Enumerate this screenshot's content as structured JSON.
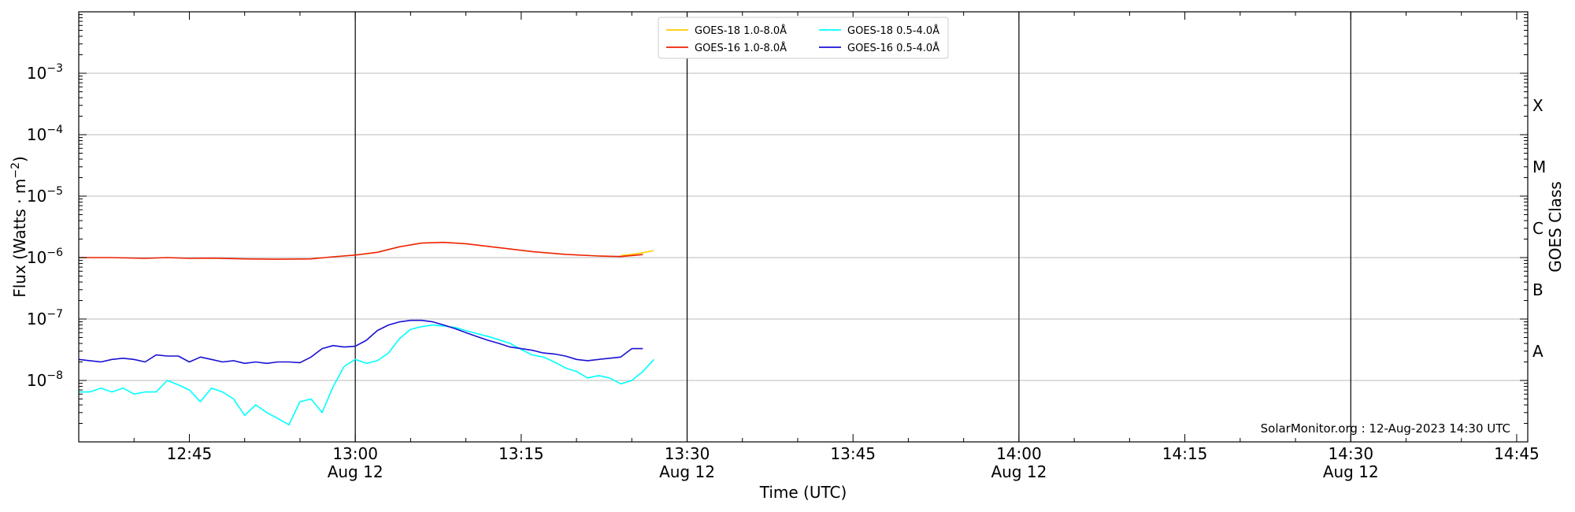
{
  "chart_data": {
    "type": "line",
    "xlabel": "Time (UTC)",
    "ylabel": "Flux (Watts · m",
    "ylabel_superscript": "−2",
    "ylabel_close": ")",
    "y_scale": "log",
    "ylim": [
      1e-09,
      0.01
    ],
    "xlim": [
      "12:35",
      "14:46"
    ],
    "x_ticks": [
      "12:45",
      "13:00",
      "13:15",
      "13:30",
      "13:45",
      "14:00",
      "14:15",
      "14:30",
      "14:45"
    ],
    "x_date_ticks": [
      "13:00",
      "13:30",
      "14:00",
      "14:30"
    ],
    "date_label": "Aug 12",
    "vertical_lines": [
      "13:00",
      "13:30",
      "14:00",
      "14:30"
    ],
    "y_ticks": [
      {
        "exp": -8,
        "value": 1e-08
      },
      {
        "exp": -7,
        "value": 1e-07
      },
      {
        "exp": -6,
        "value": 1e-06
      },
      {
        "exp": -5,
        "value": 1e-05
      },
      {
        "exp": -4,
        "value": 0.0001
      },
      {
        "exp": -3,
        "value": 0.001
      }
    ],
    "grid": "horizontal",
    "right_axis": {
      "label": "GOES Class",
      "classes": [
        {
          "name": "A",
          "value": 3e-08
        },
        {
          "name": "B",
          "value": 3e-07
        },
        {
          "name": "C",
          "value": 3e-06
        },
        {
          "name": "M",
          "value": 3e-05
        },
        {
          "name": "X",
          "value": 0.0003
        }
      ]
    },
    "legend_position": "top-center",
    "footer": "SolarMonitor.org : 12-Aug-2023 14:30 UTC",
    "series": [
      {
        "name": "GOES-18 1.0-8.0Å",
        "color": "#ffcc00",
        "x": [
          "13:24",
          "13:25",
          "13:26",
          "13:27"
        ],
        "y": [
          1.08e-06,
          1.13e-06,
          1.2e-06,
          1.3e-06
        ]
      },
      {
        "name": "GOES-16 1.0-8.0Å",
        "color": "#ee2200",
        "x": [
          "12:35",
          "12:38",
          "12:41",
          "12:43",
          "12:45",
          "12:47",
          "12:50",
          "12:53",
          "12:56",
          "12:58",
          "13:00",
          "13:02",
          "13:04",
          "13:06",
          "13:08",
          "13:10",
          "13:13",
          "13:16",
          "13:19",
          "13:22",
          "13:24",
          "13:26"
        ],
        "y": [
          1e-06,
          1e-06,
          9.7e-07,
          1e-06,
          9.7e-07,
          9.8e-07,
          9.5e-07,
          9.4e-07,
          9.5e-07,
          1.03e-06,
          1.1e-06,
          1.22e-06,
          1.5e-06,
          1.72e-06,
          1.77e-06,
          1.68e-06,
          1.45e-06,
          1.25e-06,
          1.13e-06,
          1.06e-06,
          1.04e-06,
          1.12e-06
        ]
      },
      {
        "name": "GOES-18 0.5-4.0Å",
        "color": "#00ffff",
        "x": [
          "12:35",
          "12:36",
          "12:37",
          "12:38",
          "12:39",
          "12:40",
          "12:41",
          "12:42",
          "12:43",
          "12:44",
          "12:45",
          "12:46",
          "12:47",
          "12:48",
          "12:49",
          "12:50",
          "12:51",
          "12:52",
          "12:53",
          "12:54",
          "12:55",
          "12:56",
          "12:57",
          "12:58",
          "12:59",
          "13:00",
          "13:01",
          "13:02",
          "13:03",
          "13:04",
          "13:05",
          "13:06",
          "13:07",
          "13:08",
          "13:09",
          "13:10",
          "13:11",
          "13:12",
          "13:13",
          "13:14",
          "13:15",
          "13:16",
          "13:17",
          "13:18",
          "13:19",
          "13:20",
          "13:21",
          "13:22",
          "13:23",
          "13:24",
          "13:25",
          "13:26",
          "13:27"
        ],
        "y": [
          6.5e-09,
          6.5e-09,
          7.5e-09,
          6.5e-09,
          7.5e-09,
          6e-09,
          6.5e-09,
          6.5e-09,
          1e-08,
          8.5e-09,
          7e-09,
          4.5e-09,
          7.5e-09,
          6.5e-09,
          5e-09,
          2.7e-09,
          4e-09,
          3e-09,
          2.4e-09,
          1.9e-09,
          4.5e-09,
          5e-09,
          3e-09,
          8e-09,
          1.7e-08,
          2.2e-08,
          1.9e-08,
          2.1e-08,
          2.8e-08,
          4.8e-08,
          6.8e-08,
          7.5e-08,
          8e-08,
          7.7e-08,
          7.3e-08,
          6.5e-08,
          5.8e-08,
          5.2e-08,
          4.6e-08,
          4e-08,
          3.2e-08,
          2.6e-08,
          2.4e-08,
          2e-08,
          1.6e-08,
          1.4e-08,
          1.1e-08,
          1.2e-08,
          1.1e-08,
          8.8e-09,
          1e-08,
          1.4e-08,
          2.2e-08
        ]
      },
      {
        "name": "GOES-16 0.5-4.0Å",
        "color": "#1a10d4",
        "x": [
          "12:35",
          "12:36",
          "12:37",
          "12:38",
          "12:39",
          "12:40",
          "12:41",
          "12:42",
          "12:43",
          "12:44",
          "12:45",
          "12:46",
          "12:47",
          "12:48",
          "12:49",
          "12:50",
          "12:51",
          "12:52",
          "12:53",
          "12:54",
          "12:55",
          "12:56",
          "12:57",
          "12:58",
          "12:59",
          "13:00",
          "13:01",
          "13:02",
          "13:03",
          "13:04",
          "13:05",
          "13:06",
          "13:07",
          "13:08",
          "13:09",
          "13:10",
          "13:11",
          "13:12",
          "13:13",
          "13:14",
          "13:15",
          "13:16",
          "13:17",
          "13:18",
          "13:19",
          "13:20",
          "13:21",
          "13:22",
          "13:23",
          "13:24",
          "13:25",
          "13:26"
        ],
        "y": [
          2.2e-08,
          2.1e-08,
          2e-08,
          2.2e-08,
          2.3e-08,
          2.2e-08,
          2e-08,
          2.6e-08,
          2.5e-08,
          2.5e-08,
          2e-08,
          2.4e-08,
          2.2e-08,
          2e-08,
          2.1e-08,
          1.9e-08,
          2e-08,
          1.9e-08,
          2e-08,
          2e-08,
          1.95e-08,
          2.4e-08,
          3.3e-08,
          3.7e-08,
          3.5e-08,
          3.6e-08,
          4.5e-08,
          6.5e-08,
          8e-08,
          9e-08,
          9.5e-08,
          9.5e-08,
          9e-08,
          8e-08,
          7e-08,
          6e-08,
          5.2e-08,
          4.5e-08,
          4e-08,
          3.5e-08,
          3.3e-08,
          3.1e-08,
          2.8e-08,
          2.7e-08,
          2.5e-08,
          2.2e-08,
          2.1e-08,
          2.2e-08,
          2.3e-08,
          2.4e-08,
          3.3e-08,
          3.3e-08
        ]
      }
    ]
  }
}
